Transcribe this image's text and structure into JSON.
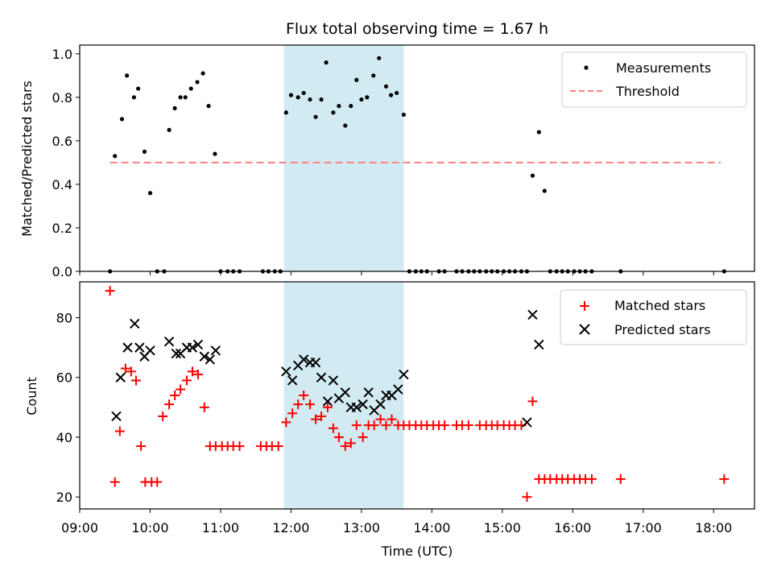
{
  "chart_data": {
    "title": "Flux total observing time = 1.67 h",
    "xlabel": "Time (UTC)",
    "x_ticks": [
      "09:00",
      "10:00",
      "11:00",
      "12:00",
      "13:00",
      "14:00",
      "15:00",
      "16:00",
      "17:00",
      "18:00"
    ],
    "xlim_hours": [
      9.0,
      18.58
    ],
    "shaded_interval_hours": [
      11.9,
      13.6
    ],
    "shade_color": "#add8e6",
    "panels": [
      {
        "type": "scatter",
        "ylabel": "Matched/Predicted stars",
        "ylim": [
          0,
          1.04
        ],
        "y_ticks": [
          "0.0",
          "0.2",
          "0.4",
          "0.6",
          "0.8",
          "1.0"
        ],
        "legend_position": "top-right",
        "series": [
          {
            "name": "Measurements",
            "marker": "dot",
            "color": "#000000",
            "x": [
              9.43,
              9.5,
              9.6,
              9.67,
              9.77,
              9.83,
              9.92,
              10.0,
              10.1,
              10.2,
              10.27,
              10.35,
              10.43,
              10.5,
              10.58,
              10.67,
              10.75,
              10.83,
              10.92,
              11.0,
              11.1,
              11.18,
              11.27,
              11.6,
              11.68,
              11.77,
              11.85,
              11.93,
              12.0,
              12.1,
              12.18,
              12.27,
              12.35,
              12.43,
              12.5,
              12.6,
              12.68,
              12.77,
              12.85,
              12.93,
              13.0,
              13.08,
              13.17,
              13.25,
              13.35,
              13.42,
              13.5,
              13.6,
              13.68,
              13.77,
              13.85,
              13.93,
              14.1,
              14.18,
              14.35,
              14.43,
              14.52,
              14.6,
              14.68,
              14.77,
              14.85,
              14.93,
              15.02,
              15.1,
              15.18,
              15.27,
              15.35,
              15.43,
              15.52,
              15.6,
              15.68,
              15.77,
              15.85,
              15.93,
              16.02,
              16.1,
              16.18,
              16.27,
              16.68,
              18.15
            ],
            "y": [
              0.0,
              0.53,
              0.7,
              0.9,
              0.8,
              0.84,
              0.55,
              0.36,
              0.0,
              0.0,
              0.65,
              0.75,
              0.8,
              0.8,
              0.84,
              0.87,
              0.91,
              0.76,
              0.54,
              0.0,
              0.0,
              0.0,
              0.0,
              0.0,
              0.0,
              0.0,
              0.0,
              0.73,
              0.81,
              0.8,
              0.82,
              0.79,
              0.71,
              0.79,
              0.96,
              0.73,
              0.76,
              0.67,
              0.76,
              0.88,
              0.79,
              0.8,
              0.9,
              0.98,
              0.85,
              0.81,
              0.82,
              0.72,
              0.0,
              0.0,
              0.0,
              0.0,
              0.0,
              0.0,
              0.0,
              0.0,
              0.0,
              0.0,
              0.0,
              0.0,
              0.0,
              0.0,
              0.0,
              0.0,
              0.0,
              0.0,
              0.0,
              0.44,
              0.64,
              0.37,
              0.0,
              0.0,
              0.0,
              0.0,
              0.0,
              0.0,
              0.0,
              0.0,
              0.0,
              0.0
            ]
          },
          {
            "name": "Threshold",
            "marker": "dashed-line",
            "color": "#ff7f7f",
            "x": [
              9.43,
              18.1
            ],
            "y": [
              0.5,
              0.5
            ]
          }
        ]
      },
      {
        "type": "scatter",
        "ylabel": "Count",
        "ylim": [
          16,
          92
        ],
        "y_ticks": [
          "20",
          "40",
          "60",
          "80"
        ],
        "legend_position": "top-right",
        "series": [
          {
            "name": "Matched stars",
            "marker": "plus",
            "color": "#ff0000",
            "x": [
              9.43,
              9.5,
              9.57,
              9.65,
              9.73,
              9.8,
              9.87,
              9.93,
              10.02,
              10.1,
              10.18,
              10.27,
              10.35,
              10.43,
              10.52,
              10.6,
              10.68,
              10.77,
              10.85,
              10.93,
              11.02,
              11.1,
              11.18,
              11.27,
              11.57,
              11.65,
              11.73,
              11.82,
              11.93,
              12.02,
              12.1,
              12.18,
              12.27,
              12.35,
              12.43,
              12.52,
              12.6,
              12.68,
              12.77,
              12.85,
              12.93,
              13.02,
              13.1,
              13.18,
              13.27,
              13.35,
              13.43,
              13.52,
              13.6,
              13.68,
              13.77,
              13.85,
              13.93,
              14.02,
              14.1,
              14.18,
              14.35,
              14.43,
              14.52,
              14.68,
              14.77,
              14.85,
              14.93,
              15.02,
              15.1,
              15.18,
              15.27,
              15.35,
              15.43,
              15.52,
              15.6,
              15.68,
              15.77,
              15.85,
              15.93,
              16.02,
              16.1,
              16.18,
              16.27,
              16.68,
              18.15
            ],
            "y": [
              89,
              25,
              42,
              63,
              62,
              59,
              37,
              25,
              25,
              25,
              47,
              51,
              54,
              56,
              59,
              62,
              61,
              50,
              37,
              37,
              37,
              37,
              37,
              37,
              37,
              37,
              37,
              37,
              45,
              48,
              51,
              54,
              51,
              46,
              47,
              50,
              43,
              40,
              37,
              38,
              44,
              40,
              44,
              44,
              46,
              44,
              46,
              44,
              44,
              44,
              44,
              44,
              44,
              44,
              44,
              44,
              44,
              44,
              44,
              44,
              44,
              44,
              44,
              44,
              44,
              44,
              44,
              20,
              52,
              26,
              26,
              26,
              26,
              26,
              26,
              26,
              26,
              26,
              26,
              26,
              26
            ]
          },
          {
            "name": "Predicted stars",
            "marker": "x",
            "color": "#000000",
            "x": [
              9.52,
              9.58,
              9.68,
              9.78,
              9.85,
              9.92,
              10.0,
              10.27,
              10.37,
              10.43,
              10.52,
              10.6,
              10.68,
              10.77,
              10.85,
              10.93,
              11.93,
              12.02,
              12.1,
              12.18,
              12.27,
              12.35,
              12.43,
              12.52,
              12.6,
              12.68,
              12.77,
              12.85,
              12.93,
              13.02,
              13.1,
              13.18,
              13.27,
              13.35,
              13.43,
              13.52,
              13.6,
              15.35,
              15.43,
              15.52
            ],
            "y": [
              47,
              60,
              70,
              78,
              70,
              67,
              69,
              72,
              68,
              68,
              70,
              70,
              71,
              67,
              66,
              69,
              62,
              59,
              64,
              66,
              65,
              65,
              60,
              52,
              59,
              53,
              55,
              50,
              50,
              51,
              55,
              49,
              51,
              54,
              54,
              56,
              61,
              45,
              81,
              71
            ]
          }
        ]
      }
    ]
  }
}
